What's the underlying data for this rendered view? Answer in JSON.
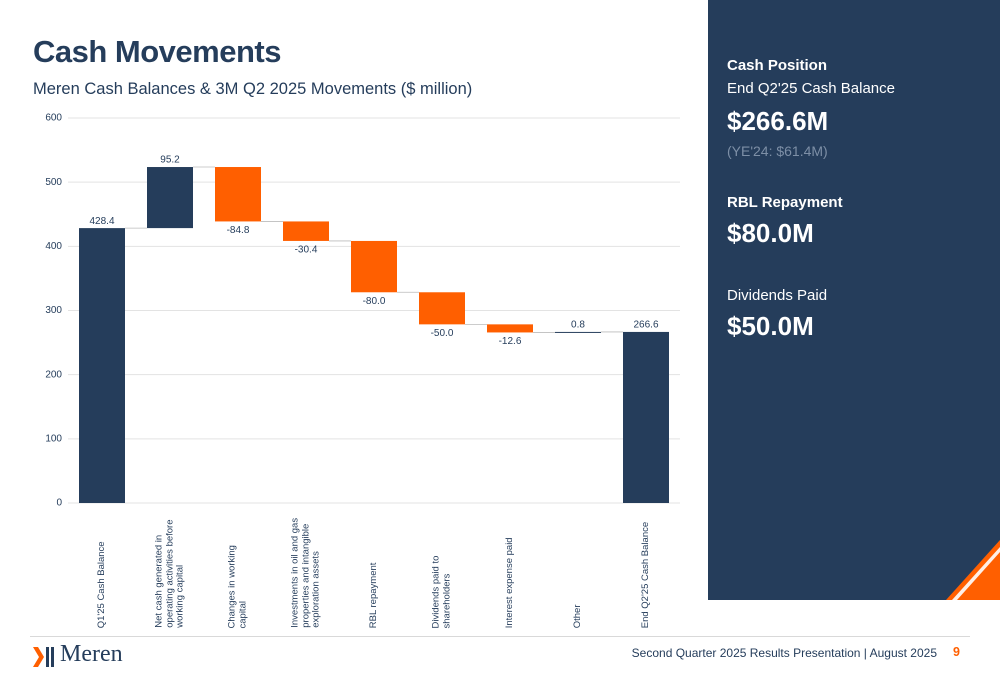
{
  "header": {
    "title": "Cash Movements",
    "subtitle": "Meren Cash Balances & 3M Q2 2025 Movements ($ million)"
  },
  "chart_data": {
    "type": "waterfall",
    "categories": [
      "Q1'25 Cash Balance",
      "Net cash generated in operating activities before working capital",
      "Changes in working capital",
      "Investments in oil and gas properties and intangible exploration assets",
      "RBL repayment",
      "Dividends paid to shareholders",
      "Interest expense paid",
      "Other",
      "End Q2'25 Cash Balance"
    ],
    "values": [
      428.4,
      95.2,
      -84.8,
      -30.4,
      -80.0,
      -50.0,
      -12.6,
      0.8,
      266.6
    ],
    "value_labels": [
      "428.4",
      "95.2",
      "-84.8",
      "-30.4",
      "-80.0",
      "-50.0",
      "-12.6",
      "0.8",
      "266.6"
    ],
    "totals": [
      0,
      8
    ],
    "colors": {
      "total": "#253d5b",
      "increase": "#253d5b",
      "decrease": "#ff5f00"
    },
    "ylim": [
      0,
      600
    ],
    "yticks": [
      0,
      100,
      200,
      300,
      400,
      500,
      600
    ],
    "grid": true
  },
  "sidebar": {
    "cash_heading": "Cash Position",
    "cash_label": "End Q2'25 Cash Balance",
    "cash_value": "$266.6M",
    "cash_note": "(YE'24: $61.4M)",
    "rbl_heading": "RBL Repayment",
    "rbl_value": "$80.0M",
    "div_label": "Dividends Paid",
    "div_value": "$50.0M"
  },
  "footer": {
    "logo": "Meren",
    "text": "Second Quarter 2025 Results Presentation | August 2025",
    "page": "9"
  }
}
